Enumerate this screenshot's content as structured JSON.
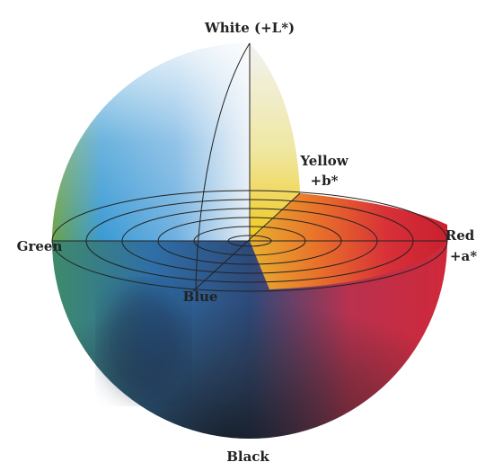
{
  "labels": {
    "white": "White (+L*)",
    "yellow": "Yellow",
    "yellow_axis": "+b*",
    "red": "Red",
    "red_axis": "+a*",
    "green": "Green",
    "blue": "Blue",
    "black": "Black"
  }
}
